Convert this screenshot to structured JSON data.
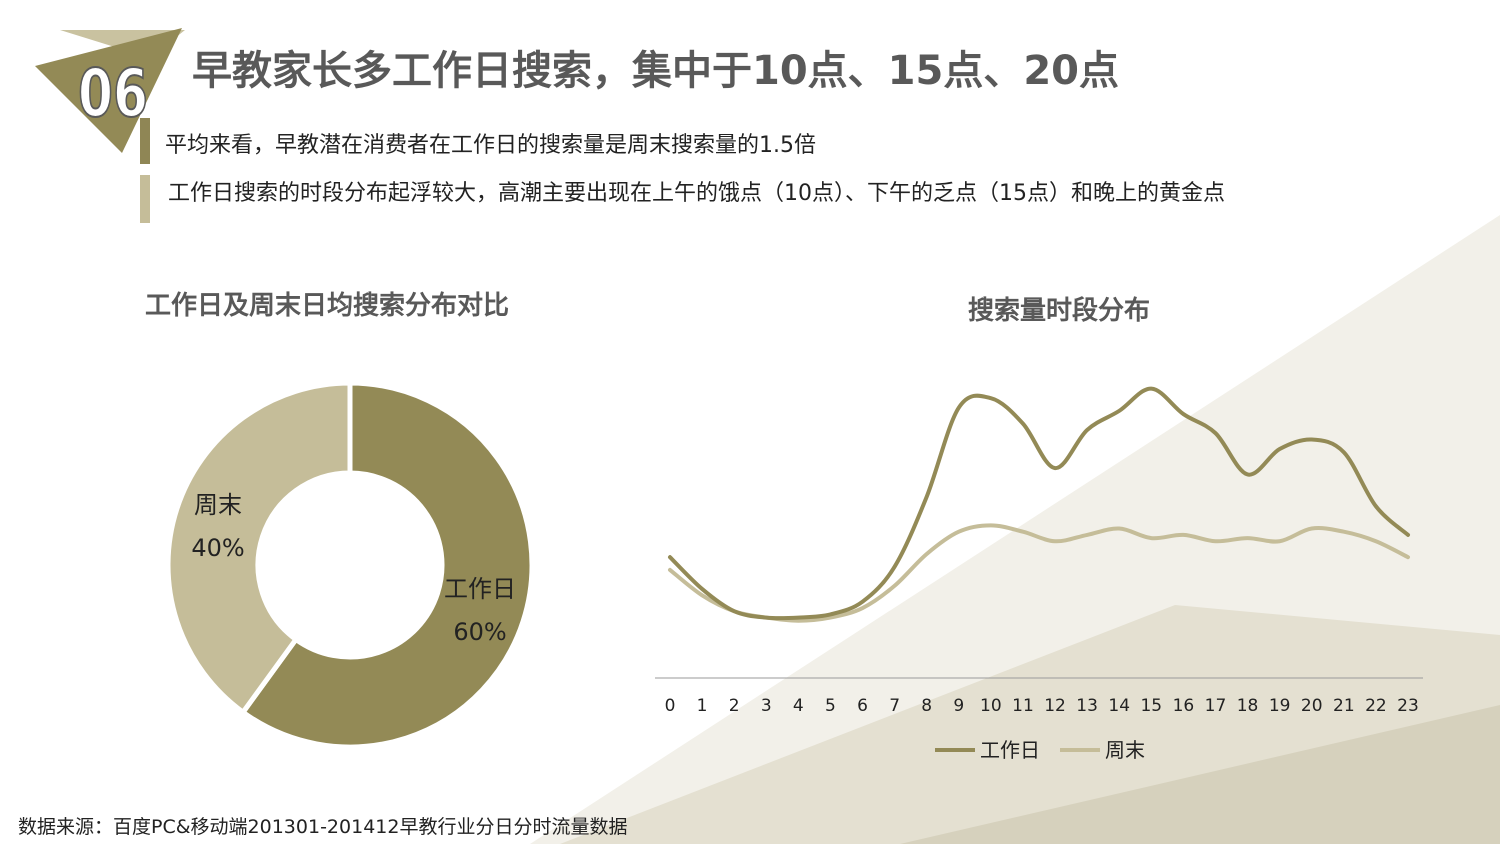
{
  "header": {
    "badge_number": "06",
    "title": "早教家长多工作日搜索，集中于10点、15点、20点"
  },
  "bullets": [
    {
      "text": "平均来看，早教潜在消费者在工作日的搜索量是周末搜索量的1.5倍",
      "color": "#8f8655"
    },
    {
      "text": "工作日搜索的时段分布起浮较大，高潮主要出现在上午的饿点（10点）、下午的乏点（15点）和晚上的黄金点",
      "color": "#c5bd99"
    }
  ],
  "colors": {
    "primary": "#938a56",
    "secondary": "#c5bd99",
    "bg_light": "#f1efe8",
    "bg_mid": "#e5e1d3"
  },
  "chart_data": [
    {
      "type": "pie",
      "variant": "donut",
      "title": "工作日及周末日均搜索分布对比",
      "slices": [
        {
          "label": "工作日",
          "value": 60,
          "display": "60%",
          "color": "#938a56"
        },
        {
          "label": "周末",
          "value": 40,
          "display": "40%",
          "color": "#c5bd99"
        }
      ]
    },
    {
      "type": "line",
      "title": "搜索量时段分布",
      "categories": [
        "0",
        "1",
        "2",
        "3",
        "4",
        "5",
        "6",
        "7",
        "8",
        "9",
        "10",
        "11",
        "12",
        "13",
        "14",
        "15",
        "16",
        "17",
        "18",
        "19",
        "20",
        "21",
        "22",
        "23"
      ],
      "ylim": [
        0,
        100
      ],
      "grid": false,
      "legend_position": "bottom",
      "series": [
        {
          "name": "工作日",
          "color": "#938a56",
          "values": [
            38,
            28,
            21,
            19,
            19,
            20,
            24,
            35,
            57,
            85,
            88,
            80,
            66,
            78,
            84,
            91,
            83,
            77,
            64,
            72,
            75,
            71,
            54,
            45
          ]
        },
        {
          "name": "周末",
          "color": "#c5bd99",
          "values": [
            34,
            26,
            21,
            19,
            18,
            19,
            22,
            29,
            39,
            46,
            48,
            46,
            43,
            45,
            47,
            44,
            45,
            43,
            44,
            43,
            47,
            46,
            43,
            38
          ]
        }
      ]
    }
  ],
  "source": "数据来源：百度PC&移动端201301-201412早教行业分日分时流量数据"
}
